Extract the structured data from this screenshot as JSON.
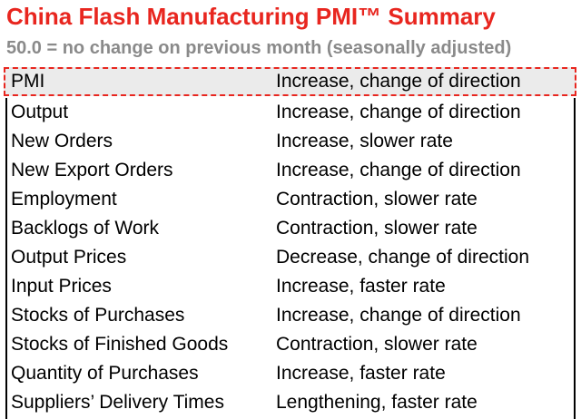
{
  "title": "China Flash Manufacturing PMI™ Summary",
  "subtitle": "50.0 = no change on previous month (seasonally adjusted)",
  "highlight_row": {
    "label": "PMI",
    "value": "Increase, change of direction"
  },
  "rows": [
    {
      "label": "Output",
      "value": "Increase, change of direction"
    },
    {
      "label": "New Orders",
      "value": "Increase, slower rate"
    },
    {
      "label": "New Export Orders",
      "value": "Increase, change of direction"
    },
    {
      "label": "Employment",
      "value": "Contraction, slower rate"
    },
    {
      "label": "Backlogs of Work",
      "value": "Contraction, slower rate"
    },
    {
      "label": "Output Prices",
      "value": "Decrease, change of direction"
    },
    {
      "label": "Input Prices",
      "value": "Increase, faster rate"
    },
    {
      "label": "Stocks of Purchases",
      "value": "Increase, change of direction"
    },
    {
      "label": "Stocks of Finished Goods",
      "value": "Contraction, slower rate"
    },
    {
      "label": "Quantity of Purchases",
      "value": "Increase, faster rate"
    },
    {
      "label": "Suppliers’ Delivery Times",
      "value": "Lengthening, faster rate"
    }
  ],
  "colors": {
    "title": "#e8261f",
    "subtitle": "#8a8a8a",
    "highlight_background": "#ebebeb",
    "highlight_border": "#e8261f"
  }
}
